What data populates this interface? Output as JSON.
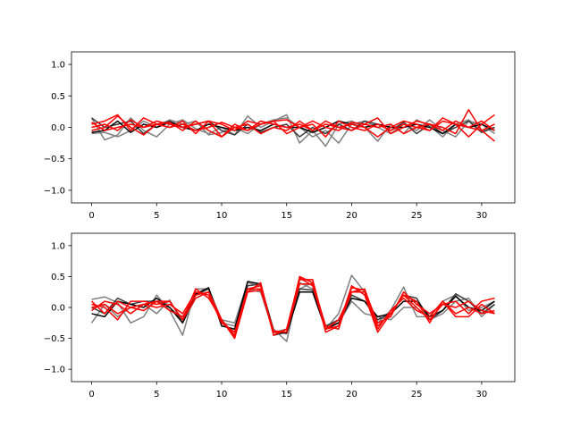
{
  "chart_data": [
    {
      "type": "line",
      "xlim": [
        -1.55,
        32.55
      ],
      "ylim": [
        -1.2,
        1.2
      ],
      "xticks": [
        0,
        5,
        10,
        15,
        20,
        25,
        30
      ],
      "yticks": [
        -1.0,
        -0.5,
        0.0,
        0.5,
        1.0
      ],
      "xtick_labels": [
        "0",
        "5",
        "10",
        "15",
        "20",
        "25",
        "30"
      ],
      "ytick_labels": [
        "−1.0",
        "−0.5",
        "0.0",
        "0.5",
        "1.0"
      ],
      "grid": false,
      "x": [
        0,
        1,
        2,
        3,
        4,
        5,
        6,
        7,
        8,
        9,
        10,
        11,
        12,
        13,
        14,
        15,
        16,
        17,
        18,
        19,
        20,
        21,
        22,
        23,
        24,
        25,
        26,
        27,
        28,
        29,
        30,
        31
      ],
      "series": [
        {
          "color": "#808080",
          "values": [
            0.15,
            -0.2,
            -0.12,
            0.15,
            -0.05,
            -0.15,
            0.05,
            0.12,
            -0.02,
            -0.1,
            0.0,
            -0.12,
            0.18,
            0.0,
            0.1,
            0.2,
            -0.25,
            -0.05,
            -0.3,
            0.05,
            0.1,
            0.0,
            -0.22,
            0.05,
            -0.1,
            0.12,
            0.02,
            -0.15,
            0.05,
            0.12,
            -0.05,
            0.0
          ]
        },
        {
          "color": "#808080",
          "values": [
            -0.1,
            -0.08,
            -0.15,
            -0.05,
            0.1,
            0.0,
            0.12,
            0.05,
            0.1,
            -0.12,
            -0.08,
            0.0,
            -0.1,
            0.05,
            0.12,
            0.15,
            0.0,
            -0.15,
            -0.05,
            -0.25,
            0.05,
            0.1,
            0.0,
            -0.1,
            0.05,
            -0.05,
            0.12,
            -0.05,
            -0.15,
            0.1,
            0.05,
            -0.1
          ]
        },
        {
          "color": "#3a3a3a",
          "values": [
            0.15,
            0.0,
            0.05,
            0.1,
            -0.1,
            0.05,
            0.1,
            0.0,
            0.05,
            0.1,
            -0.05,
            -0.12,
            0.05,
            -0.08,
            0.0,
            0.05,
            -0.15,
            0.0,
            -0.1,
            0.05,
            -0.05,
            0.1,
            0.05,
            -0.05,
            0.08,
            -0.1,
            0.05,
            -0.1,
            0.0,
            0.1,
            -0.08,
            0.0
          ]
        },
        {
          "color": "#000000",
          "values": [
            -0.08,
            -0.05,
            0.1,
            -0.08,
            0.05,
            0.0,
            0.08,
            0.0,
            -0.05,
            0.05,
            0.0,
            -0.05,
            0.0,
            -0.05,
            0.05,
            0.0,
            0.0,
            -0.08,
            0.0,
            0.1,
            0.05,
            0.0,
            0.05,
            0.0,
            0.0,
            0.05,
            0.0,
            -0.1,
            0.05,
            0.0,
            0.05,
            -0.05
          ]
        },
        {
          "color": "#ff0000",
          "values": [
            0.05,
            0.1,
            0.2,
            -0.05,
            0.15,
            0.05,
            0.0,
            0.1,
            -0.1,
            0.1,
            0.05,
            -0.05,
            0.1,
            0.05,
            0.1,
            0.12,
            0.0,
            0.1,
            0.0,
            -0.05,
            0.08,
            0.05,
            0.15,
            -0.1,
            0.0,
            0.1,
            0.05,
            0.0,
            -0.1,
            0.28,
            -0.05,
            -0.22
          ]
        },
        {
          "color": "#ff0000",
          "values": [
            0.0,
            0.05,
            -0.05,
            0.12,
            0.0,
            0.1,
            0.05,
            0.0,
            0.05,
            0.1,
            -0.15,
            0.05,
            -0.05,
            0.1,
            0.05,
            0.0,
            0.05,
            -0.05,
            0.1,
            0.0,
            0.05,
            0.0,
            -0.15,
            0.0,
            0.1,
            0.05,
            -0.05,
            0.1,
            0.05,
            0.0,
            0.1,
            -0.05
          ]
        },
        {
          "color": "#ff0000",
          "values": [
            -0.05,
            0.0,
            0.18,
            0.0,
            -0.12,
            0.05,
            0.08,
            -0.05,
            0.1,
            -0.05,
            -0.15,
            0.0,
            0.05,
            -0.1,
            0.0,
            -0.05,
            0.1,
            -0.05,
            0.05,
            0.0,
            -0.05,
            0.05,
            0.0,
            0.05,
            -0.1,
            0.0,
            -0.05,
            0.15,
            0.05,
            -0.15,
            0.05,
            0.2
          ]
        },
        {
          "color": "#ff0000",
          "values": [
            0.08,
            -0.05,
            0.0,
            0.05,
            0.0,
            0.05,
            0.0,
            0.05,
            -0.05,
            0.0,
            0.08,
            0.0,
            -0.05,
            0.05,
            0.1,
            -0.1,
            0.0,
            0.05,
            -0.15,
            0.1,
            0.0,
            -0.05,
            0.05,
            -0.05,
            0.05,
            0.0,
            0.05,
            -0.05,
            0.1,
            0.0,
            -0.05,
            0.05
          ]
        }
      ]
    },
    {
      "type": "line",
      "xlim": [
        -1.55,
        32.55
      ],
      "ylim": [
        -1.2,
        1.2
      ],
      "xticks": [
        0,
        5,
        10,
        15,
        20,
        25,
        30
      ],
      "yticks": [
        -1.0,
        -0.5,
        0.0,
        0.5,
        1.0
      ],
      "xtick_labels": [
        "0",
        "5",
        "10",
        "15",
        "20",
        "25",
        "30"
      ],
      "ytick_labels": [
        "−1.0",
        "−0.5",
        "0.0",
        "0.5",
        "1.0"
      ],
      "grid": false,
      "x": [
        0,
        1,
        2,
        3,
        4,
        5,
        6,
        7,
        8,
        9,
        10,
        11,
        12,
        13,
        14,
        15,
        16,
        17,
        18,
        19,
        20,
        21,
        22,
        23,
        24,
        25,
        26,
        27,
        28,
        29,
        30,
        31
      ],
      "series": [
        {
          "color": "#808080",
          "values": [
            0.13,
            0.17,
            0.08,
            -0.25,
            -0.15,
            0.2,
            -0.05,
            -0.45,
            0.3,
            0.3,
            -0.2,
            -0.25,
            0.4,
            0.35,
            -0.35,
            -0.55,
            0.4,
            0.3,
            -0.35,
            -0.1,
            0.52,
            0.25,
            -0.25,
            -0.05,
            0.33,
            -0.15,
            -0.15,
            0.1,
            0.2,
            -0.05,
            0.0,
            0.1
          ]
        },
        {
          "color": "#808080",
          "values": [
            -0.25,
            0.05,
            -0.15,
            0.0,
            0.05,
            -0.1,
            0.12,
            -0.25,
            0.15,
            0.25,
            -0.25,
            -0.3,
            0.3,
            0.25,
            -0.4,
            -0.35,
            0.3,
            0.4,
            -0.3,
            -0.25,
            0.1,
            -0.1,
            -0.15,
            -0.2,
            0.0,
            0.0,
            -0.2,
            -0.1,
            0.1,
            0.15,
            -0.15,
            0.05
          ]
        },
        {
          "color": "#3a3a3a",
          "values": [
            0.0,
            -0.1,
            0.15,
            0.05,
            0.1,
            0.1,
            0.0,
            -0.2,
            0.2,
            0.3,
            -0.25,
            -0.4,
            0.35,
            0.38,
            -0.45,
            -0.4,
            0.3,
            0.28,
            -0.3,
            -0.2,
            0.2,
            0.1,
            -0.2,
            -0.1,
            0.2,
            0.15,
            -0.2,
            -0.05,
            0.22,
            0.1,
            -0.1,
            0.05
          ]
        },
        {
          "color": "#000000",
          "values": [
            -0.1,
            -0.15,
            0.1,
            0.05,
            0.0,
            0.15,
            0.0,
            -0.25,
            0.22,
            0.32,
            -0.3,
            -0.35,
            0.42,
            0.38,
            -0.4,
            -0.42,
            0.25,
            0.25,
            -0.35,
            -0.25,
            0.15,
            0.1,
            -0.15,
            -0.1,
            0.1,
            0.1,
            -0.15,
            -0.05,
            0.18,
            0.0,
            -0.05,
            0.1
          ]
        },
        {
          "color": "#ff0000",
          "values": [
            0.05,
            0.0,
            -0.2,
            0.1,
            0.1,
            0.05,
            0.1,
            -0.2,
            0.15,
            0.25,
            -0.2,
            -0.5,
            0.25,
            0.4,
            -0.45,
            -0.35,
            0.45,
            0.45,
            -0.35,
            -0.3,
            0.35,
            0.2,
            -0.4,
            -0.1,
            0.2,
            0.0,
            -0.2,
            0.05,
            0.1,
            -0.1,
            0.1,
            0.15
          ]
        },
        {
          "color": "#ff0000",
          "values": [
            -0.05,
            0.1,
            0.05,
            -0.1,
            0.05,
            0.0,
            0.05,
            -0.1,
            0.25,
            0.2,
            -0.25,
            -0.4,
            0.3,
            0.3,
            -0.4,
            -0.4,
            0.5,
            0.4,
            -0.4,
            -0.3,
            0.25,
            0.3,
            -0.3,
            -0.1,
            0.2,
            0.1,
            -0.25,
            0.1,
            -0.1,
            0.0,
            -0.1,
            -0.05
          ]
        },
        {
          "color": "#ff0000",
          "values": [
            0.1,
            -0.1,
            0.1,
            0.0,
            -0.05,
            0.1,
            0.1,
            -0.2,
            0.3,
            0.15,
            -0.2,
            -0.45,
            0.3,
            0.35,
            -0.45,
            -0.35,
            0.48,
            0.35,
            -0.35,
            -0.2,
            0.25,
            0.25,
            -0.35,
            -0.05,
            0.15,
            -0.05,
            -0.15,
            0.1,
            -0.15,
            -0.15,
            0.05,
            -0.1
          ]
        },
        {
          "color": "#ff0000",
          "values": [
            0.0,
            0.05,
            -0.1,
            0.0,
            0.05,
            0.1,
            -0.05,
            -0.15,
            0.2,
            0.25,
            -0.2,
            -0.48,
            0.25,
            0.28,
            -0.38,
            -0.4,
            0.38,
            0.38,
            -0.3,
            -0.35,
            0.32,
            0.28,
            -0.25,
            -0.15,
            0.25,
            0.05,
            -0.1,
            0.05,
            0.0,
            0.1,
            -0.05,
            -0.1
          ]
        }
      ]
    }
  ]
}
